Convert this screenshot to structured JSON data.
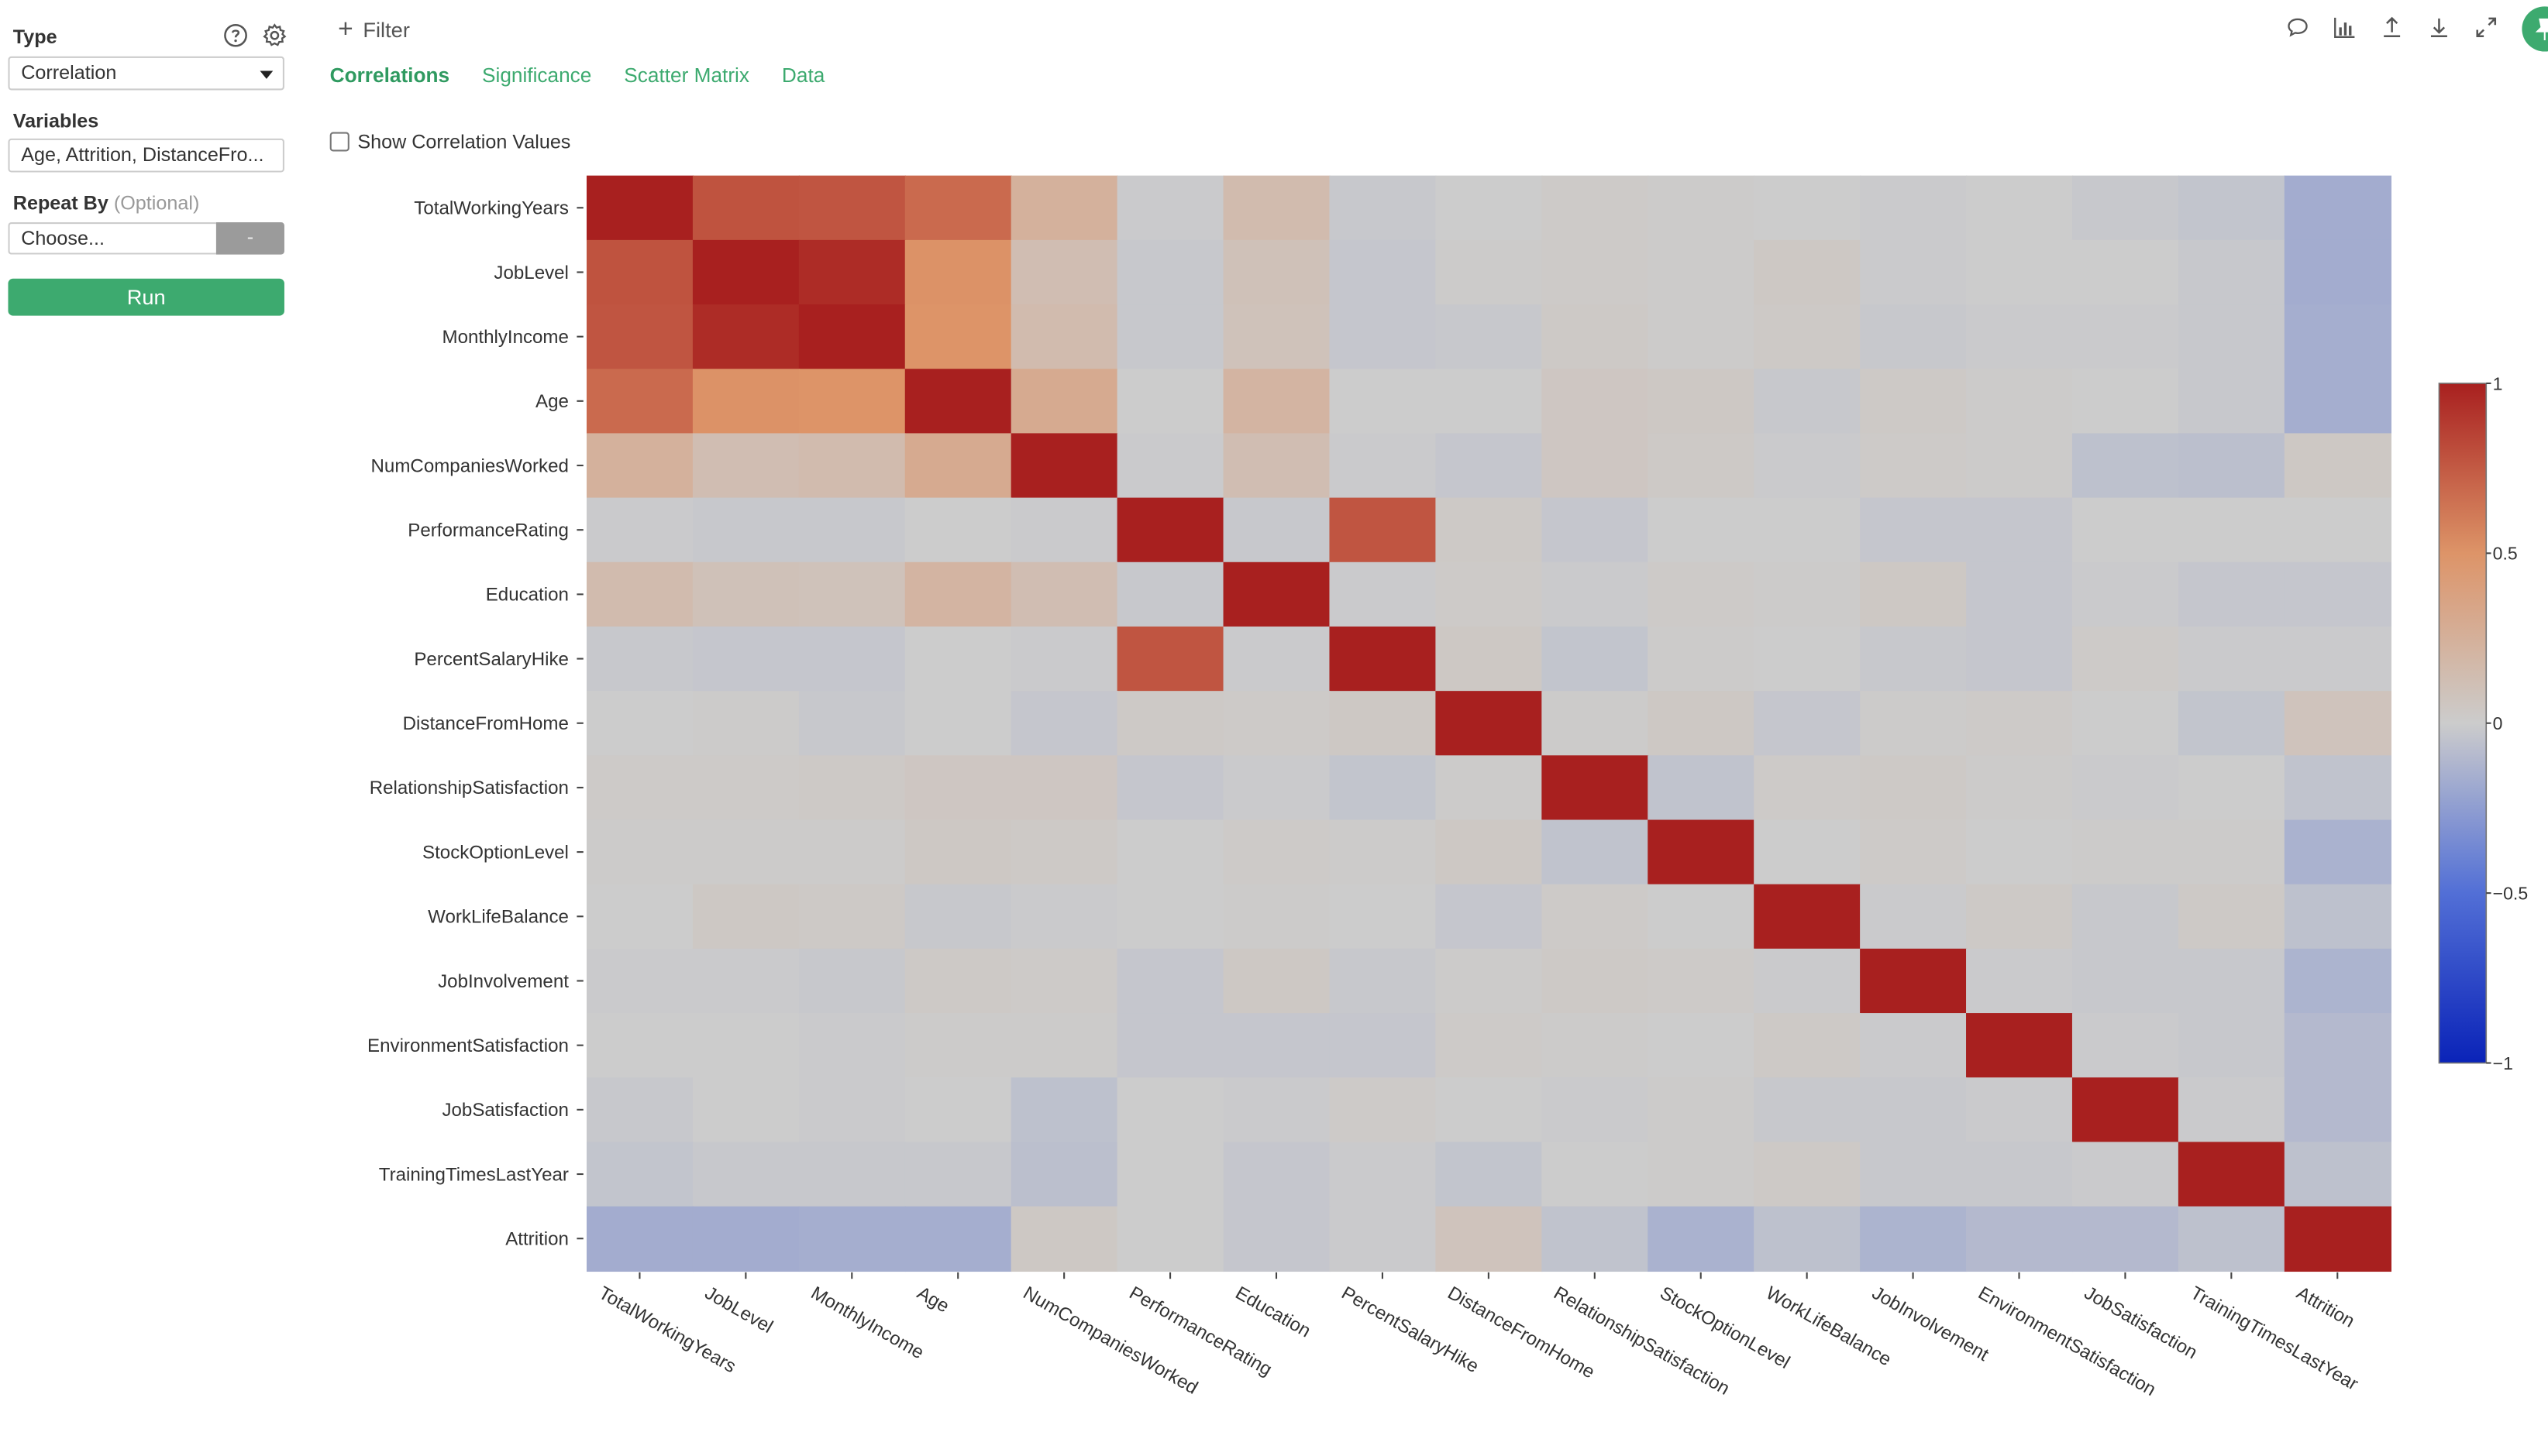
{
  "sidebar": {
    "type_label": "Type",
    "type_value": "Correlation",
    "variables_label": "Variables",
    "variables_value": "Age, Attrition, DistanceFro...",
    "repeat_label": "Repeat By",
    "repeat_optional": "(Optional)",
    "choose_placeholder": "Choose...",
    "dash_label": "-",
    "run_label": "Run",
    "help_icon": "help-icon",
    "gear_icon": "gear-icon"
  },
  "topbar": {
    "filter_label": "Filter",
    "tabs": [
      {
        "label": "Correlations",
        "active": true
      },
      {
        "label": "Significance",
        "active": false
      },
      {
        "label": "Scatter Matrix",
        "active": false
      },
      {
        "label": "Data",
        "active": false
      }
    ],
    "toolbar_icons": [
      "comment-icon",
      "chart-icon",
      "upload-icon",
      "download-icon",
      "expand-icon",
      "pin-icon"
    ],
    "accent": "#3daa6f"
  },
  "options": {
    "show_values_label": "Show Correlation Values",
    "show_values_checked": false
  },
  "chart_data": {
    "type": "heatmap",
    "variables": [
      "TotalWorkingYears",
      "JobLevel",
      "MonthlyIncome",
      "Age",
      "NumCompaniesWorked",
      "PerformanceRating",
      "Education",
      "PercentSalaryHike",
      "DistanceFromHome",
      "RelationshipSatisfaction",
      "StockOptionLevel",
      "WorkLifeBalance",
      "JobInvolvement",
      "EnvironmentSatisfaction",
      "JobSatisfaction",
      "TrainingTimesLastYear",
      "Attrition"
    ],
    "matrix": [
      [
        1.0,
        0.78,
        0.77,
        0.68,
        0.24,
        -0.01,
        0.15,
        -0.02,
        0.0,
        0.02,
        0.01,
        0.0,
        -0.01,
        0.0,
        -0.02,
        -0.04,
        -0.17
      ],
      [
        0.78,
        1.0,
        0.95,
        0.51,
        0.13,
        -0.02,
        0.1,
        -0.03,
        0.01,
        0.02,
        0.01,
        0.04,
        -0.01,
        0.0,
        0.0,
        -0.02,
        -0.17
      ],
      [
        0.77,
        0.95,
        1.0,
        0.5,
        0.15,
        -0.02,
        0.09,
        -0.03,
        -0.02,
        0.03,
        0.01,
        0.03,
        -0.02,
        -0.01,
        -0.01,
        -0.02,
        -0.16
      ],
      [
        0.68,
        0.51,
        0.5,
        1.0,
        0.3,
        0.0,
        0.21,
        0.0,
        0.0,
        0.05,
        0.04,
        -0.02,
        0.03,
        0.01,
        0.0,
        -0.02,
        -0.16
      ],
      [
        0.24,
        0.13,
        0.15,
        0.3,
        1.0,
        -0.01,
        0.13,
        -0.01,
        -0.03,
        0.05,
        0.03,
        -0.01,
        0.02,
        0.01,
        -0.06,
        -0.07,
        0.04
      ],
      [
        -0.01,
        -0.02,
        -0.02,
        0.0,
        -0.01,
        1.0,
        -0.02,
        0.77,
        0.03,
        -0.03,
        0.0,
        0.0,
        -0.03,
        -0.03,
        0.0,
        0.0,
        0.0
      ],
      [
        0.15,
        0.1,
        0.09,
        0.21,
        0.13,
        -0.02,
        1.0,
        -0.01,
        0.02,
        -0.01,
        0.02,
        0.01,
        0.04,
        -0.03,
        -0.01,
        -0.03,
        -0.03
      ],
      [
        -0.02,
        -0.03,
        -0.03,
        0.0,
        -0.01,
        0.77,
        -0.01,
        1.0,
        0.04,
        -0.04,
        0.01,
        0.0,
        -0.02,
        -0.03,
        0.02,
        -0.01,
        -0.01
      ],
      [
        0.0,
        0.01,
        -0.02,
        0.0,
        -0.03,
        0.03,
        0.02,
        0.04,
        1.0,
        0.01,
        0.04,
        -0.03,
        0.01,
        0.02,
        0.0,
        -0.04,
        0.08
      ],
      [
        0.02,
        0.02,
        0.03,
        0.05,
        0.05,
        -0.03,
        -0.01,
        -0.04,
        0.01,
        1.0,
        -0.05,
        0.02,
        0.03,
        0.01,
        -0.01,
        0.0,
        -0.05
      ],
      [
        0.01,
        0.01,
        0.01,
        0.04,
        0.03,
        0.0,
        0.02,
        0.01,
        0.04,
        -0.05,
        1.0,
        0.0,
        0.02,
        0.0,
        0.01,
        0.01,
        -0.14
      ],
      [
        0.0,
        0.04,
        0.03,
        -0.02,
        -0.01,
        0.0,
        0.01,
        0.0,
        -0.03,
        0.02,
        0.0,
        1.0,
        -0.01,
        0.03,
        -0.02,
        0.03,
        -0.06
      ],
      [
        -0.01,
        -0.01,
        -0.02,
        0.03,
        0.02,
        -0.03,
        0.04,
        -0.02,
        0.01,
        0.03,
        0.02,
        -0.01,
        1.0,
        -0.01,
        -0.02,
        -0.02,
        -0.13
      ],
      [
        0.0,
        0.0,
        -0.01,
        0.01,
        0.01,
        -0.03,
        -0.03,
        -0.03,
        0.02,
        0.01,
        0.0,
        0.03,
        -0.01,
        1.0,
        -0.01,
        -0.02,
        -0.1
      ],
      [
        -0.02,
        0.0,
        -0.01,
        0.0,
        -0.06,
        0.0,
        -0.01,
        0.02,
        0.0,
        -0.01,
        0.01,
        -0.02,
        -0.02,
        -0.01,
        1.0,
        -0.01,
        -0.1
      ],
      [
        -0.04,
        -0.02,
        -0.02,
        -0.02,
        -0.07,
        0.0,
        -0.03,
        -0.01,
        -0.04,
        0.0,
        0.01,
        0.03,
        -0.02,
        -0.02,
        -0.01,
        1.0,
        -0.06
      ],
      [
        -0.17,
        -0.17,
        -0.16,
        -0.16,
        0.04,
        0.0,
        -0.03,
        -0.01,
        0.08,
        -0.05,
        -0.14,
        -0.06,
        -0.13,
        -0.1,
        -0.1,
        -0.06,
        1.0
      ]
    ],
    "colorbar": {
      "min": -1,
      "max": 1,
      "ticks": [
        1,
        0.5,
        0,
        -0.5,
        -1
      ],
      "tick_labels": [
        "1",
        "0.5",
        "0",
        "−0.5",
        "−1"
      ]
    },
    "colors": {
      "low": "#0a23b8",
      "mid": "#cccccc",
      "high": "#a8201f"
    }
  }
}
